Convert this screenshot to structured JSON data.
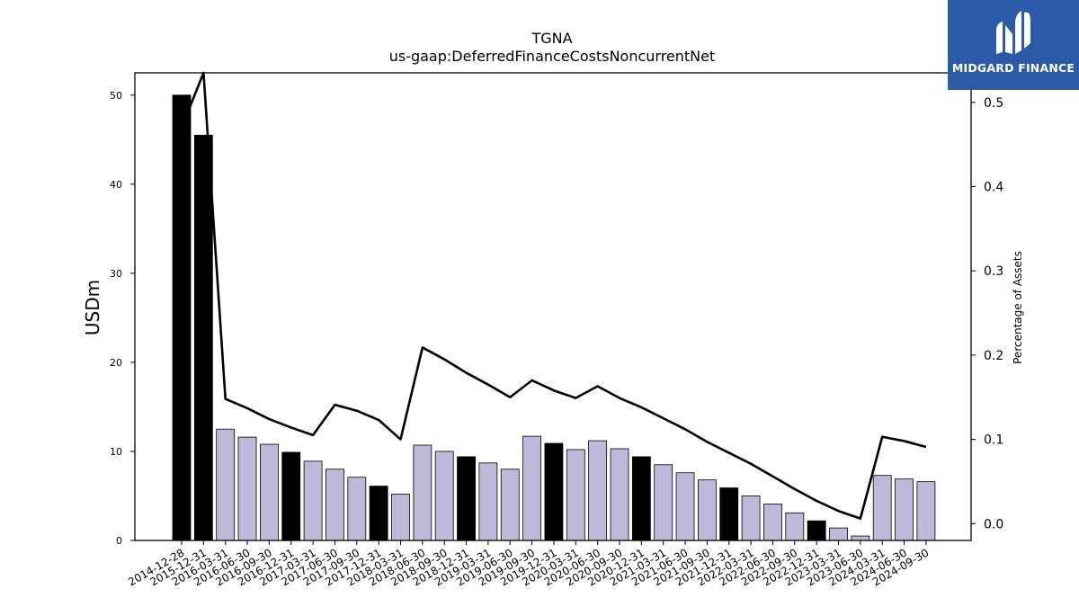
{
  "chart_data": {
    "type": "bar",
    "title": "TGNA",
    "subtitle": "us-gaap:DeferredFinanceCostsNoncurrentNet",
    "ylabel": "USDm",
    "y2label": "Percentage of Assets",
    "ylim": [
      0,
      52.5
    ],
    "y2lim": [
      -0.02,
      0.535
    ],
    "yticks": [
      0,
      10,
      20,
      30,
      40,
      50
    ],
    "y2ticks": [
      0.0,
      0.1,
      0.2,
      0.3,
      0.4,
      0.5
    ],
    "categories": [
      "2014-12-28",
      "2015-12-31",
      "2016-03-31",
      "2016-06-30",
      "2016-09-30",
      "2016-12-31",
      "2017-03-31",
      "2017-06-30",
      "2017-09-30",
      "2017-12-31",
      "2018-03-31",
      "2018-06-30",
      "2018-09-30",
      "2018-12-31",
      "2019-03-31",
      "2019-06-30",
      "2019-09-30",
      "2019-12-31",
      "2020-03-31",
      "2020-06-30",
      "2020-09-30",
      "2020-12-31",
      "2021-03-31",
      "2021-06-30",
      "2021-09-30",
      "2021-12-31",
      "2022-03-31",
      "2022-06-30",
      "2022-09-30",
      "2022-12-31",
      "2023-03-31",
      "2023-06-30",
      "2024-03-31",
      "2024-06-30",
      "2024-09-30"
    ],
    "series": [
      {
        "kind": "bar",
        "values": [
          50.0,
          45.5,
          12.5,
          11.6,
          10.8,
          9.9,
          8.9,
          8.0,
          7.1,
          6.1,
          5.2,
          10.7,
          10.0,
          9.4,
          8.7,
          8.0,
          11.7,
          10.9,
          10.2,
          11.2,
          10.3,
          9.4,
          8.5,
          7.6,
          6.8,
          5.9,
          5.0,
          4.1,
          3.1,
          2.2,
          1.4,
          0.5,
          7.3,
          6.9,
          6.6
        ],
        "annual_color": "#000000",
        "quarter_color": "#bdb9d9",
        "annual_flags": [
          1,
          1,
          0,
          0,
          0,
          1,
          0,
          0,
          0,
          1,
          0,
          0,
          0,
          1,
          0,
          0,
          0,
          1,
          0,
          0,
          0,
          1,
          0,
          0,
          0,
          1,
          0,
          0,
          0,
          1,
          0,
          0,
          0,
          0,
          0
        ]
      },
      {
        "kind": "line",
        "axis": "right",
        "color": "#000000",
        "values": [
          0.47,
          0.535,
          0.148,
          0.137,
          0.124,
          0.114,
          0.105,
          0.141,
          0.134,
          0.123,
          0.1,
          0.209,
          0.195,
          0.179,
          0.165,
          0.15,
          0.17,
          0.158,
          0.149,
          0.163,
          0.149,
          0.138,
          0.125,
          0.112,
          0.097,
          0.084,
          0.071,
          0.056,
          0.041,
          0.027,
          0.015,
          0.006,
          0.103,
          0.098,
          0.091
        ]
      }
    ]
  },
  "logo": {
    "text": "MIDGARD FINANCE"
  }
}
